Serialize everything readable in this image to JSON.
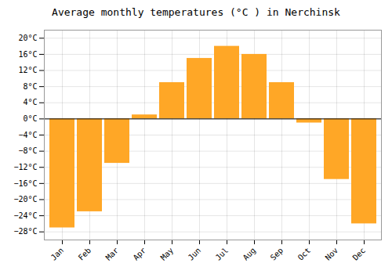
{
  "chart_data": {
    "type": "bar",
    "title": "Average monthly temperatures (°C ) in Nerchinsk",
    "categories": [
      "Jan",
      "Feb",
      "Mar",
      "Apr",
      "May",
      "Jun",
      "Jul",
      "Aug",
      "Sep",
      "Oct",
      "Nov",
      "Dec"
    ],
    "values": [
      -27,
      -23,
      -11,
      1,
      9,
      15,
      18,
      16,
      9,
      -1,
      -15,
      -26
    ],
    "color": "#FFA726",
    "ylim": [
      -30,
      22
    ],
    "yticks": [
      {
        "value": -28,
        "label": "−28°C"
      },
      {
        "value": -24,
        "label": "−24°C"
      },
      {
        "value": -20,
        "label": "−20°C"
      },
      {
        "value": -16,
        "label": "−16°C"
      },
      {
        "value": -12,
        "label": "−12°C"
      },
      {
        "value": -8,
        "label": "−8°C"
      },
      {
        "value": -4,
        "label": "−4°C"
      },
      {
        "value": 0,
        "label": "0°C"
      },
      {
        "value": 4,
        "label": "4°C"
      },
      {
        "value": 8,
        "label": "8°C"
      },
      {
        "value": 12,
        "label": "12°C"
      },
      {
        "value": 16,
        "label": "16°C"
      },
      {
        "value": 20,
        "label": "20°C"
      }
    ],
    "grid": true
  }
}
